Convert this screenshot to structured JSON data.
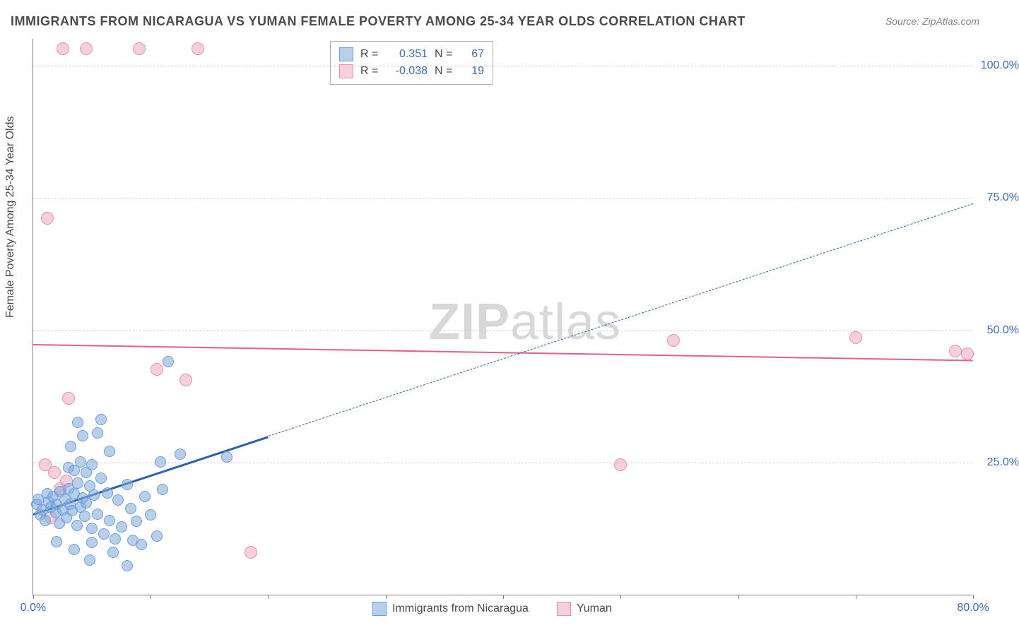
{
  "title": "IMMIGRANTS FROM NICARAGUA VS YUMAN FEMALE POVERTY AMONG 25-34 YEAR OLDS CORRELATION CHART",
  "source": "Source: ZipAtlas.com",
  "ylabel": "Female Poverty Among 25-34 Year Olds",
  "watermark_zip": "ZIP",
  "watermark_atlas": "atlas",
  "chart": {
    "type": "scatter",
    "xlim": [
      0,
      80
    ],
    "ylim": [
      0,
      105
    ],
    "xticks": [
      0,
      10,
      20,
      30,
      40,
      50,
      60,
      70,
      80
    ],
    "xtick_labels": {
      "0": "0.0%",
      "80": "80.0%"
    },
    "yticks": [
      25,
      50,
      75,
      100
    ],
    "ytick_labels": {
      "25": "25.0%",
      "50": "50.0%",
      "75": "75.0%",
      "100": "100.0%"
    },
    "grid_color": "#d0d0d0",
    "axis_color": "#808080",
    "background_color": "#ffffff"
  },
  "series": {
    "a": {
      "name": "Immigrants from Nicaragua",
      "color_fill": "rgba(125,168,220,0.55)",
      "color_stroke": "#6a9fd8",
      "marker_radius": 8,
      "R": "0.351",
      "N": "67",
      "trend": {
        "x1": 0,
        "y1": 15.5,
        "x2": 80,
        "y2": 74,
        "solid_until_x": 20,
        "color": "#2a5fb0",
        "width_solid": 3,
        "width_dash": 1.5
      },
      "points": [
        [
          0.3,
          17
        ],
        [
          0.4,
          18
        ],
        [
          0.6,
          15
        ],
        [
          0.8,
          16
        ],
        [
          1.0,
          14
        ],
        [
          1.2,
          19
        ],
        [
          1.3,
          17.5
        ],
        [
          1.5,
          16.5
        ],
        [
          1.7,
          18.5
        ],
        [
          1.9,
          15.5
        ],
        [
          2.0,
          17
        ],
        [
          2.2,
          13.5
        ],
        [
          2.3,
          19.5
        ],
        [
          2.5,
          16
        ],
        [
          2.7,
          18
        ],
        [
          2.8,
          14.5
        ],
        [
          3.0,
          20
        ],
        [
          3.1,
          17
        ],
        [
          3.3,
          15.8
        ],
        [
          3.5,
          19
        ],
        [
          3.7,
          13
        ],
        [
          3.8,
          21
        ],
        [
          4.0,
          16.5
        ],
        [
          4.2,
          18.2
        ],
        [
          4.4,
          14.8
        ],
        [
          4.5,
          17.3
        ],
        [
          4.8,
          20.5
        ],
        [
          5.0,
          12.5
        ],
        [
          5.2,
          18.8
        ],
        [
          5.5,
          15.2
        ],
        [
          5.8,
          22
        ],
        [
          6.0,
          11.5
        ],
        [
          6.3,
          19.2
        ],
        [
          6.5,
          14
        ],
        [
          7.0,
          10.5
        ],
        [
          7.2,
          17.8
        ],
        [
          7.5,
          12.8
        ],
        [
          8.0,
          20.8
        ],
        [
          8.3,
          16.2
        ],
        [
          8.8,
          13.8
        ],
        [
          9.2,
          9.5
        ],
        [
          9.5,
          18.5
        ],
        [
          10.0,
          15
        ],
        [
          10.5,
          11
        ],
        [
          11.0,
          19.8
        ],
        [
          3.0,
          24
        ],
        [
          3.5,
          23.5
        ],
        [
          4.0,
          25
        ],
        [
          4.5,
          23
        ],
        [
          5.0,
          24.5
        ],
        [
          3.2,
          28
        ],
        [
          4.2,
          30
        ],
        [
          5.5,
          30.5
        ],
        [
          6.5,
          27
        ],
        [
          3.8,
          32.5
        ],
        [
          5.8,
          33
        ],
        [
          11.5,
          44
        ],
        [
          2.0,
          10
        ],
        [
          3.5,
          8.5
        ],
        [
          5.0,
          9.8
        ],
        [
          6.8,
          8
        ],
        [
          8.5,
          10.2
        ],
        [
          4.8,
          6.5
        ],
        [
          10.8,
          25
        ],
        [
          12.5,
          26.5
        ],
        [
          16.5,
          26
        ],
        [
          8.0,
          5.5
        ]
      ]
    },
    "b": {
      "name": "Yuman",
      "color_fill": "rgba(240,160,185,0.5)",
      "color_stroke": "#e890b0",
      "marker_radius": 9,
      "R": "-0.038",
      "N": "19",
      "trend": {
        "x1": 0,
        "y1": 47.5,
        "x2": 80,
        "y2": 44.5,
        "color": "#e45f8f",
        "width": 2.5
      },
      "points": [
        [
          2.5,
          103
        ],
        [
          4.5,
          103
        ],
        [
          9.0,
          103
        ],
        [
          14.0,
          103
        ],
        [
          1.2,
          71
        ],
        [
          3.0,
          37
        ],
        [
          10.5,
          42.5
        ],
        [
          13.0,
          40.5
        ],
        [
          1.0,
          24.5
        ],
        [
          1.8,
          23
        ],
        [
          2.3,
          20
        ],
        [
          2.8,
          21.5
        ],
        [
          1.5,
          14.5
        ],
        [
          18.5,
          8
        ],
        [
          50.0,
          24.5
        ],
        [
          54.5,
          48
        ],
        [
          70.0,
          48.5
        ],
        [
          78.5,
          46
        ],
        [
          79.5,
          45.5
        ]
      ]
    }
  },
  "legend_labels": {
    "R": "R =",
    "N": "N ="
  }
}
